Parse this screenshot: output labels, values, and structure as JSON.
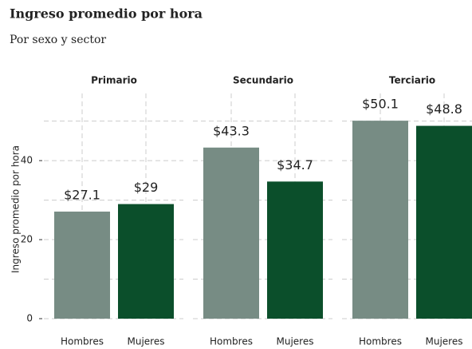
{
  "chart_data": {
    "type": "bar",
    "title": "Ingreso promedio por hora",
    "subtitle": "Por sexo y sector",
    "y_label": "Ingreso promedio por hora",
    "ylim": [
      0,
      57
    ],
    "yticks": [
      0,
      20,
      40
    ],
    "minor_yticks": [
      10,
      30,
      50
    ],
    "grid": true,
    "colors": [
      "#778c84",
      "#0b4f2b"
    ],
    "facets": [
      {
        "title": "Primario",
        "categories": [
          "Hombres",
          "Mujeres"
        ],
        "values": [
          27.1,
          29
        ],
        "value_labels": [
          "$27.1",
          "$29"
        ]
      },
      {
        "title": "Secundario",
        "categories": [
          "Hombres",
          "Mujeres"
        ],
        "values": [
          43.3,
          34.7
        ],
        "value_labels": [
          "$43.3",
          "$34.7"
        ]
      },
      {
        "title": "Terciario",
        "categories": [
          "Hombres",
          "Mujeres"
        ],
        "values": [
          50.1,
          48.8
        ],
        "value_labels": [
          "$50.1",
          "$48.8"
        ]
      }
    ]
  }
}
